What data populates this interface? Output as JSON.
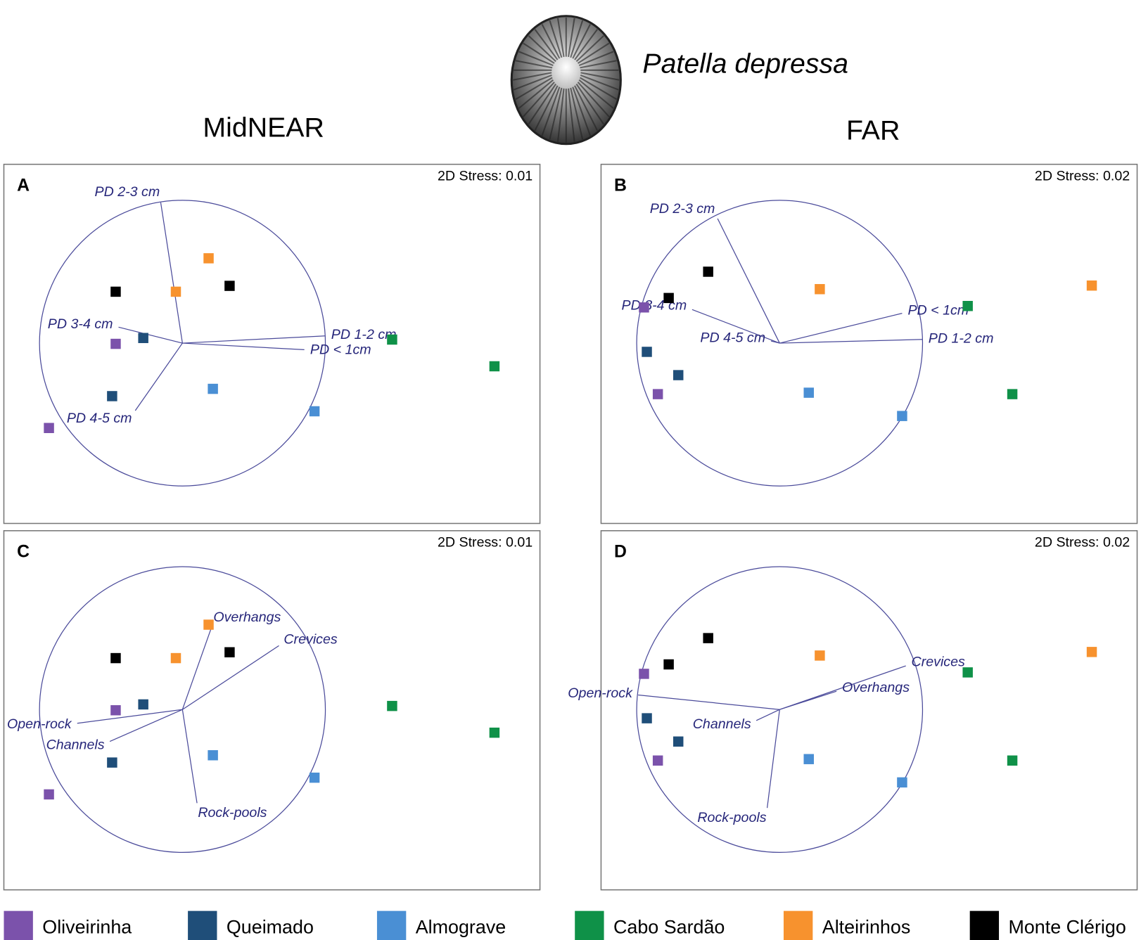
{
  "species": "Patella depressa",
  "columns": [
    "MidNEAR",
    "FAR"
  ],
  "sites": [
    {
      "name": "Oliveirinha",
      "color": "#7b52ab"
    },
    {
      "name": "Queimado",
      "color": "#1f4e79"
    },
    {
      "name": "Almograve",
      "color": "#4a8fd4"
    },
    {
      "name": "Cabo Sardão",
      "color": "#0f9148"
    },
    {
      "name": "Alteirinhos",
      "color": "#f7922e"
    },
    {
      "name": "Monte Clérigo",
      "color": "#000000"
    }
  ],
  "chart_data": [
    {
      "type": "scatter",
      "title": "A",
      "subtitle": "2D Stress: 0.01",
      "series": [
        {
          "x": [
            -0.467,
            -0.934
          ],
          "y": [
            -0.005,
            -0.594
          ]
        },
        {
          "x": [
            -0.274,
            -0.492
          ],
          "y": [
            0.036,
            -0.371
          ]
        },
        {
          "x": [
            0.213,
            0.924
          ],
          "y": [
            -0.32,
            -0.477
          ]
        },
        {
          "x": [
            1.467,
            2.183
          ],
          "y": [
            0.025,
            -0.162
          ]
        },
        {
          "x": [
            0.183,
            -0.046
          ],
          "y": [
            0.594,
            0.36
          ]
        },
        {
          "x": [
            -0.467,
            0.33
          ],
          "y": [
            0.36,
            0.401
          ]
        }
      ],
      "vectors": [
        {
          "label": "PD 2-3 cm",
          "x": -0.152,
          "y": 0.985
        },
        {
          "label": "PD 3-4 cm",
          "x": -0.447,
          "y": 0.112
        },
        {
          "label": "PD 1-2 cm",
          "x": 1.0,
          "y": 0.051
        },
        {
          "label": "PD < 1cm",
          "x": 0.853,
          "y": -0.046
        },
        {
          "label": "PD 4-5 cm",
          "x": -0.33,
          "y": -0.472
        }
      ]
    },
    {
      "type": "scatter",
      "title": "B",
      "subtitle": "2D Stress: 0.02",
      "series": [
        {
          "x": [
            -0.949,
            -0.852
          ],
          "y": [
            0.25,
            -0.357
          ]
        },
        {
          "x": [
            -0.929,
            -0.709
          ],
          "y": [
            -0.061,
            -0.224
          ]
        },
        {
          "x": [
            0.204,
            0.857
          ],
          "y": [
            -0.347,
            -0.51
          ]
        },
        {
          "x": [
            1.316,
            1.628
          ],
          "y": [
            0.26,
            -0.357
          ]
        },
        {
          "x": [
            0.281,
            2.184
          ],
          "y": [
            0.378,
            0.403
          ]
        },
        {
          "x": [
            -0.5,
            -0.776
          ],
          "y": [
            0.5,
            0.316
          ]
        }
      ],
      "vectors": [
        {
          "label": "PD 2-3 cm",
          "x": -0.434,
          "y": 0.872
        },
        {
          "label": "PD 3-4 cm",
          "x": -0.612,
          "y": 0.235
        },
        {
          "label": "PD < 1cm",
          "x": 0.857,
          "y": 0.209
        },
        {
          "label": "PD 1-2 cm",
          "x": 1.0,
          "y": 0.026
        },
        {
          "label": "PD 4-5 cm",
          "x": -0.06,
          "y": 0.015
        }
      ]
    },
    {
      "type": "scatter",
      "title": "C",
      "subtitle": "2D Stress: 0.01",
      "series": [
        {
          "x": [
            -0.467,
            -0.934
          ],
          "y": [
            -0.005,
            -0.594
          ]
        },
        {
          "x": [
            -0.274,
            -0.492
          ],
          "y": [
            0.036,
            -0.371
          ]
        },
        {
          "x": [
            0.213,
            0.924
          ],
          "y": [
            -0.32,
            -0.477
          ]
        },
        {
          "x": [
            1.467,
            2.183
          ],
          "y": [
            0.025,
            -0.162
          ]
        },
        {
          "x": [
            0.183,
            -0.046
          ],
          "y": [
            0.594,
            0.36
          ]
        },
        {
          "x": [
            -0.467,
            0.33
          ],
          "y": [
            0.36,
            0.401
          ]
        }
      ],
      "vectors": [
        {
          "label": "Overhangs",
          "x": 0.203,
          "y": 0.574
        },
        {
          "label": "Crevices",
          "x": 0.675,
          "y": 0.447
        },
        {
          "label": "Open-rock",
          "x": -0.736,
          "y": -0.096
        },
        {
          "label": "Channels",
          "x": -0.508,
          "y": -0.223
        },
        {
          "label": "Rock-pools",
          "x": 0.102,
          "y": -0.655
        }
      ]
    },
    {
      "type": "scatter",
      "title": "D",
      "subtitle": "2D Stress: 0.02",
      "series": [
        {
          "x": [
            -0.949,
            -0.852
          ],
          "y": [
            0.25,
            -0.357
          ]
        },
        {
          "x": [
            -0.929,
            -0.709
          ],
          "y": [
            -0.061,
            -0.224
          ]
        },
        {
          "x": [
            0.204,
            0.857
          ],
          "y": [
            -0.347,
            -0.51
          ]
        },
        {
          "x": [
            1.316,
            1.628
          ],
          "y": [
            0.26,
            -0.357
          ]
        },
        {
          "x": [
            0.281,
            2.184
          ],
          "y": [
            0.378,
            0.403
          ]
        },
        {
          "x": [
            -0.5,
            -0.776
          ],
          "y": [
            0.5,
            0.316
          ]
        }
      ],
      "vectors": [
        {
          "label": "Crevices",
          "x": 0.883,
          "y": 0.306
        },
        {
          "label": "Overhangs",
          "x": 0.398,
          "y": 0.128
        },
        {
          "label": "Open-rock",
          "x": -0.99,
          "y": 0.102
        },
        {
          "label": "Channels",
          "x": -0.163,
          "y": -0.077
        },
        {
          "label": "Rock-pools",
          "x": -0.087,
          "y": -0.689
        }
      ]
    }
  ]
}
